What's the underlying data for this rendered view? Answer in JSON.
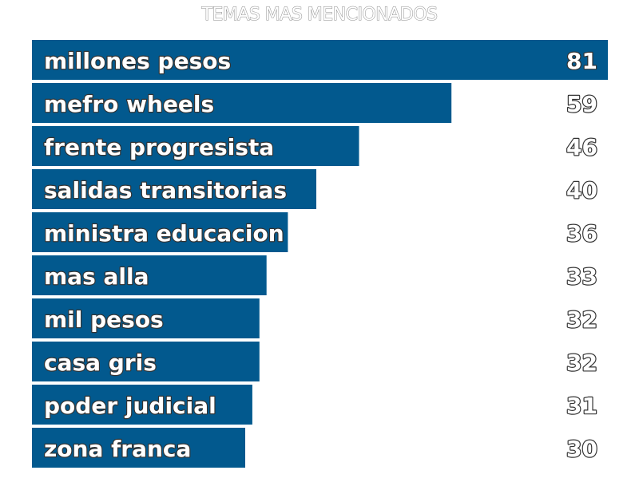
{
  "chart_data": {
    "type": "bar",
    "orientation": "horizontal",
    "title": "TEMAS MAS MENCIONADOS",
    "categories": [
      "millones pesos",
      "mefro wheels",
      "frente progresista",
      "salidas transitorias",
      "ministra educacion",
      "mas alla",
      "mil pesos",
      "casa gris",
      "poder judicial",
      "zona franca"
    ],
    "values": [
      81,
      59,
      46,
      40,
      36,
      33,
      32,
      32,
      31,
      30
    ],
    "xlim": [
      0,
      81
    ],
    "grid": false,
    "legend": "none",
    "bar_color": "#02598e",
    "background_color": "#ffffff"
  }
}
